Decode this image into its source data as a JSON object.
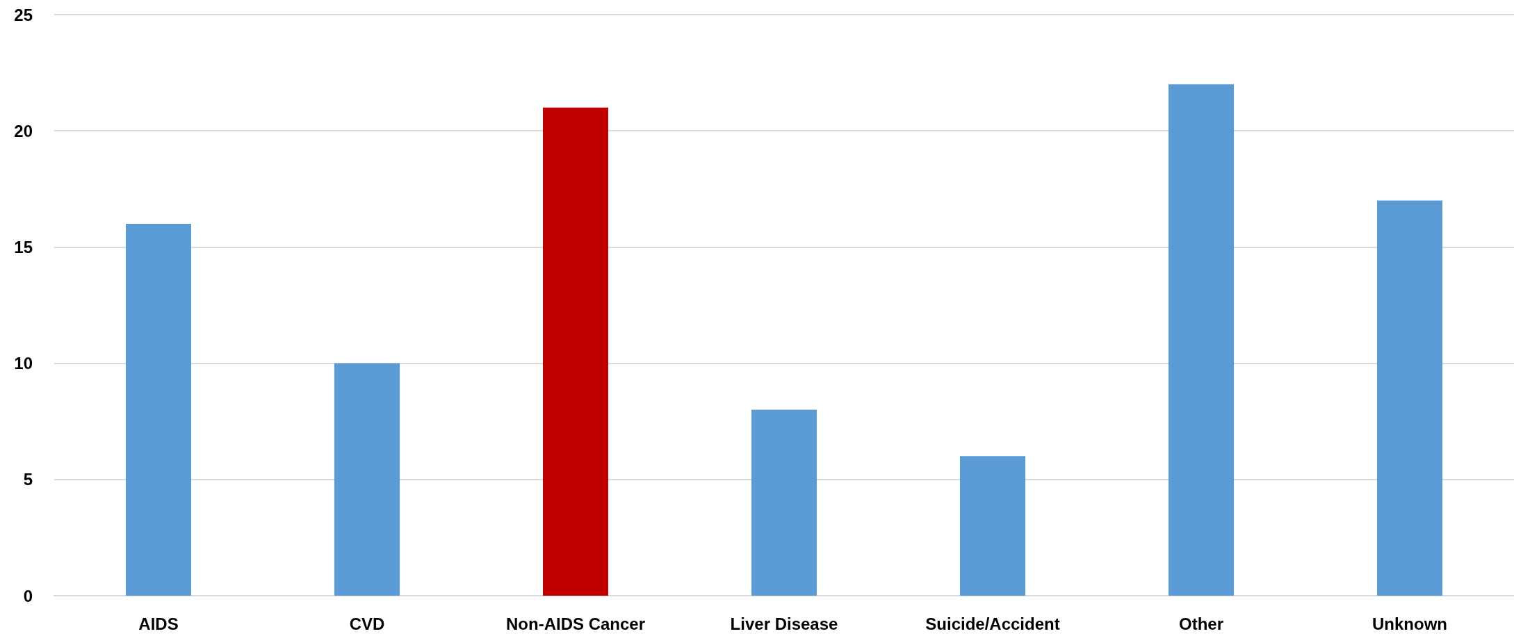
{
  "chart_data": {
    "type": "bar",
    "categories": [
      "AIDS",
      "CVD",
      "Non-AIDS Cancer",
      "Liver Disease",
      "Suicide/Accident",
      "Other",
      "Unknown"
    ],
    "values": [
      16,
      10,
      21,
      8,
      6,
      22,
      17
    ],
    "colors": [
      "#5b9bd5",
      "#5b9bd5",
      "#c00000",
      "#5b9bd5",
      "#5b9bd5",
      "#5b9bd5",
      "#5b9bd5"
    ],
    "ylim": [
      0,
      25
    ],
    "yticks": [
      0,
      5,
      10,
      15,
      20,
      25
    ],
    "grid": "y"
  }
}
